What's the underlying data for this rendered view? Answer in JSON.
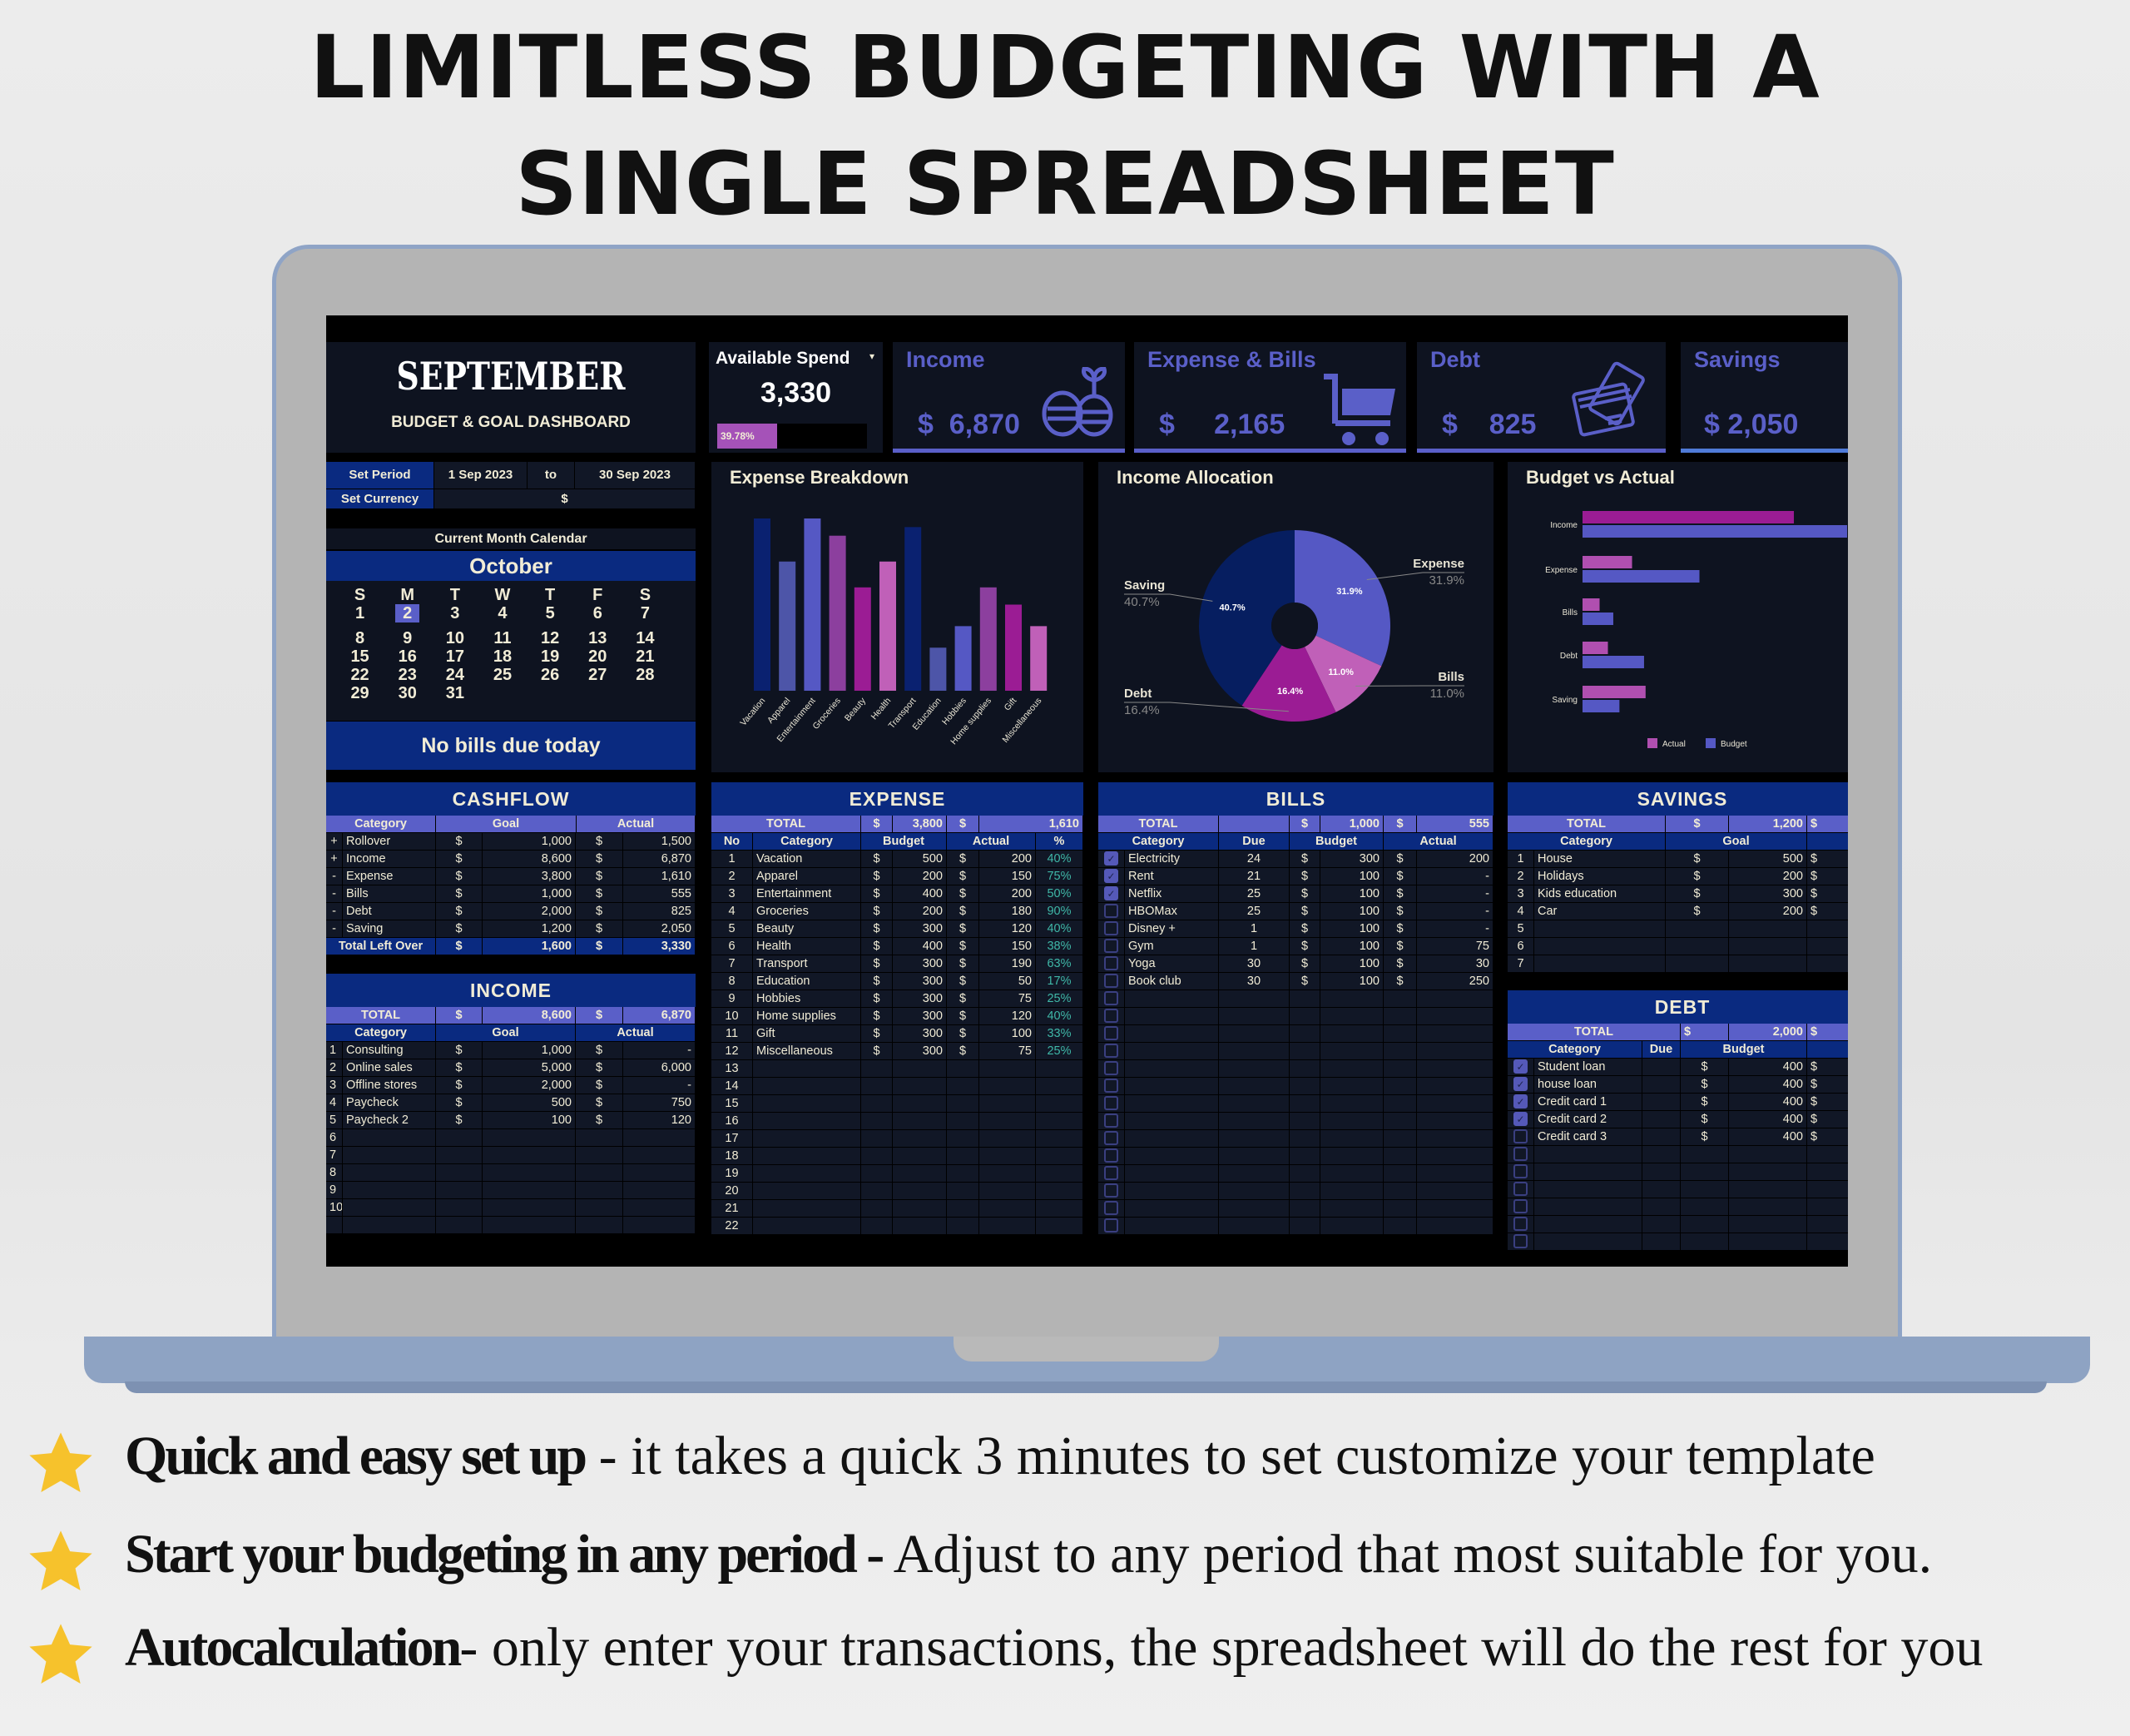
{
  "headline": {
    "line1": "LIMITLESS BUDGETING WITH A",
    "line2": "SINGLE SPREADSHEET"
  },
  "colors": {
    "navy": "#0a2a80",
    "accent": "#5a5fc8",
    "magenta": "#9b1c94",
    "pink": "#c060b8",
    "panel": "#0e1320",
    "star": "#f6c22c"
  },
  "header": {
    "month": "SEPTEMBER",
    "subtitle": "BUDGET & GOAL DASHBOARD"
  },
  "available_spend": {
    "label": "Available Spend",
    "value": "3,330",
    "progress_label": "39.78%",
    "progress_percent": 39.78
  },
  "kpis": [
    {
      "label": "Income",
      "value": "$  6,870",
      "icon": "coins-plant-icon"
    },
    {
      "label": "Expense & Bills",
      "value": "$     2,165",
      "icon": "shopping-cart-icon"
    },
    {
      "label": "Debt",
      "value": "$    825",
      "icon": "credit-cards-icon"
    },
    {
      "label": "Savings",
      "value": "$ 2,050",
      "icon": ""
    }
  ],
  "settings": {
    "period_label": "Set Period",
    "start": "1 Sep 2023",
    "to": "to",
    "end": "30 Sep 2023",
    "currency_label": "Set Currency",
    "currency": "$"
  },
  "calendar": {
    "title": "Current Month Calendar",
    "month": "October",
    "weekdays": [
      "S",
      "M",
      "T",
      "W",
      "T",
      "F",
      "S"
    ],
    "weeks": [
      [
        "1",
        "2",
        "3",
        "4",
        "5",
        "6",
        "7"
      ],
      [
        "8",
        "9",
        "10",
        "11",
        "12",
        "13",
        "14"
      ],
      [
        "15",
        "16",
        "17",
        "18",
        "19",
        "20",
        "21"
      ],
      [
        "22",
        "23",
        "24",
        "25",
        "26",
        "27",
        "28"
      ],
      [
        "29",
        "30",
        "31",
        "",
        "",
        "",
        ""
      ]
    ],
    "today": "2",
    "notice": "No bills due today"
  },
  "cashflow": {
    "title": "CASHFLOW",
    "headers": [
      "Category",
      "Goal",
      "Actual"
    ],
    "rows": [
      {
        "sign": "+",
        "category": "Rollover",
        "goal": "1,000",
        "actual": "1,500"
      },
      {
        "sign": "+",
        "category": "Income",
        "goal": "8,600",
        "actual": "6,870"
      },
      {
        "sign": "-",
        "category": "Expense",
        "goal": "3,800",
        "actual": "1,610"
      },
      {
        "sign": "-",
        "category": "Bills",
        "goal": "1,000",
        "actual": "555"
      },
      {
        "sign": "-",
        "category": "Debt",
        "goal": "2,000",
        "actual": "825"
      },
      {
        "sign": "-",
        "category": "Saving",
        "goal": "1,200",
        "actual": "2,050"
      }
    ],
    "total": {
      "label": "Total Left Over",
      "goal": "1,600",
      "actual": "3,330"
    }
  },
  "income": {
    "title": "INCOME",
    "total": {
      "label": "TOTAL",
      "goal": "8,600",
      "actual": "6,870"
    },
    "headers": [
      "Category",
      "Goal",
      "Actual"
    ],
    "rows": [
      {
        "no": "1",
        "category": "Consulting",
        "goal": "1,000",
        "actual": "-"
      },
      {
        "no": "2",
        "category": "Online sales",
        "goal": "5,000",
        "actual": "6,000"
      },
      {
        "no": "3",
        "category": "Offline stores",
        "goal": "2,000",
        "actual": "-"
      },
      {
        "no": "4",
        "category": "Paycheck",
        "goal": "500",
        "actual": "750"
      },
      {
        "no": "5",
        "category": "Paycheck 2",
        "goal": "100",
        "actual": "120"
      }
    ],
    "empty_rows": [
      "6",
      "7",
      "8",
      "9",
      "10",
      ""
    ]
  },
  "expense": {
    "title": "EXPENSE",
    "total": {
      "label": "TOTAL",
      "budget": "3,800",
      "actual": "1,610"
    },
    "headers": [
      "No",
      "Category",
      "Budget",
      "Actual",
      "%"
    ],
    "rows": [
      {
        "no": "1",
        "category": "Vacation",
        "budget": "500",
        "actual": "200",
        "pct": "40%"
      },
      {
        "no": "2",
        "category": "Apparel",
        "budget": "200",
        "actual": "150",
        "pct": "75%"
      },
      {
        "no": "3",
        "category": "Entertainment",
        "budget": "400",
        "actual": "200",
        "pct": "50%"
      },
      {
        "no": "4",
        "category": "Groceries",
        "budget": "200",
        "actual": "180",
        "pct": "90%"
      },
      {
        "no": "5",
        "category": "Beauty",
        "budget": "300",
        "actual": "120",
        "pct": "40%"
      },
      {
        "no": "6",
        "category": "Health",
        "budget": "400",
        "actual": "150",
        "pct": "38%"
      },
      {
        "no": "7",
        "category": "Transport",
        "budget": "300",
        "actual": "190",
        "pct": "63%"
      },
      {
        "no": "8",
        "category": "Education",
        "budget": "300",
        "actual": "50",
        "pct": "17%"
      },
      {
        "no": "9",
        "category": "Hobbies",
        "budget": "300",
        "actual": "75",
        "pct": "25%"
      },
      {
        "no": "10",
        "category": "Home supplies",
        "budget": "300",
        "actual": "120",
        "pct": "40%"
      },
      {
        "no": "11",
        "category": "Gift",
        "budget": "300",
        "actual": "100",
        "pct": "33%"
      },
      {
        "no": "12",
        "category": "Miscellaneous",
        "budget": "300",
        "actual": "75",
        "pct": "25%"
      }
    ],
    "empty_rows": [
      "13",
      "14",
      "15",
      "16",
      "17",
      "18",
      "19",
      "20",
      "21",
      "22"
    ]
  },
  "bills": {
    "title": "BILLS",
    "total": {
      "label": "TOTAL",
      "budget": "1,000",
      "actual": "555"
    },
    "headers": [
      "Category",
      "Due",
      "Budget",
      "Actual"
    ],
    "rows": [
      {
        "checked": true,
        "category": "Electricity",
        "due": "24",
        "budget": "300",
        "actual": "200"
      },
      {
        "checked": true,
        "category": "Rent",
        "due": "21",
        "budget": "100",
        "actual": "-"
      },
      {
        "checked": true,
        "category": "Netflix",
        "due": "25",
        "budget": "100",
        "actual": "-"
      },
      {
        "checked": false,
        "category": "HBOMax",
        "due": "25",
        "budget": "100",
        "actual": "-"
      },
      {
        "checked": false,
        "category": "Disney +",
        "due": "1",
        "budget": "100",
        "actual": "-"
      },
      {
        "checked": false,
        "category": "Gym",
        "due": "1",
        "budget": "100",
        "actual": "75"
      },
      {
        "checked": false,
        "category": "Yoga",
        "due": "30",
        "budget": "100",
        "actual": "30"
      },
      {
        "checked": false,
        "category": "Book club",
        "due": "30",
        "budget": "100",
        "actual": "250"
      }
    ],
    "empty_count": 14
  },
  "savings": {
    "title": "SAVINGS",
    "total": {
      "label": "TOTAL",
      "goal": "1,200"
    },
    "headers": [
      "Category",
      "Goal"
    ],
    "rows": [
      {
        "no": "1",
        "category": "House",
        "goal": "500"
      },
      {
        "no": "2",
        "category": "Holidays",
        "goal": "200"
      },
      {
        "no": "3",
        "category": "Kids education",
        "goal": "300"
      },
      {
        "no": "4",
        "category": "Car",
        "goal": "200"
      }
    ],
    "empty_rows": [
      "5",
      "6",
      "7"
    ]
  },
  "debt": {
    "title": "DEBT",
    "total": {
      "label": "TOTAL",
      "budget": "2,000"
    },
    "headers": [
      "Category",
      "Due",
      "Budget"
    ],
    "rows": [
      {
        "checked": true,
        "category": "Student loan",
        "budget": "400"
      },
      {
        "checked": true,
        "category": "house loan",
        "budget": "400"
      },
      {
        "checked": true,
        "category": "Credit card 1",
        "budget": "400"
      },
      {
        "checked": true,
        "category": "Credit card 2",
        "budget": "400"
      },
      {
        "checked": false,
        "category": "Credit card 3",
        "budget": "400"
      }
    ],
    "empty_count": 6
  },
  "chart_data": [
    {
      "type": "bar",
      "title": "Expense Breakdown",
      "categories": [
        "Vacation",
        "Apparel",
        "Entertainment",
        "Groceries",
        "Beauty",
        "Health",
        "Transport",
        "Education",
        "Hobbies",
        "Home supplies",
        "Gift",
        "Miscellaneous"
      ],
      "values": [
        200,
        150,
        200,
        180,
        120,
        150,
        190,
        50,
        75,
        120,
        100,
        75
      ],
      "colors": [
        "#0a2170",
        "#4d55a8",
        "#5558c4",
        "#8c3f9e",
        "#9b1c94",
        "#c060b8"
      ],
      "ylim": [
        0,
        200
      ],
      "grid": false
    },
    {
      "type": "pie",
      "title": "Income Allocation",
      "donut": true,
      "slices": [
        {
          "label": "Expense",
          "value": 31.9,
          "display": "31.9%",
          "color": "#5558c4"
        },
        {
          "label": "Bills",
          "value": 11.0,
          "display": "11.0%",
          "color": "#c060b8"
        },
        {
          "label": "Debt",
          "value": 16.4,
          "display": "16.4%",
          "color": "#9b1c94"
        },
        {
          "label": "Saving",
          "value": 40.7,
          "display": "40.7%",
          "color": "#061e60"
        }
      ]
    },
    {
      "type": "bar",
      "orientation": "horizontal",
      "title": "Budget vs Actual",
      "categories": [
        "Income",
        "Expense",
        "Bills",
        "Debt",
        "Saving"
      ],
      "series": [
        {
          "name": "Actual",
          "values": [
            6870,
            1610,
            555,
            825,
            2050
          ],
          "color": "#b04fb0"
        },
        {
          "name": "Budget",
          "values": [
            8600,
            3800,
            1000,
            2000,
            1200
          ],
          "color": "#5558c4"
        }
      ],
      "xlim": [
        0,
        8600
      ],
      "legend": "bottom"
    }
  ],
  "features": [
    {
      "bold": "Quick and easy set up",
      "text": " - it takes a quick 3 minutes to set customize your template"
    },
    {
      "bold": "Start your budgeting in any period - ",
      "text": "Adjust to any period that most suitable for you."
    },
    {
      "bold": "Autocalculation",
      "text": "- only enter your transactions, the spreadsheet will do the rest for you"
    }
  ]
}
